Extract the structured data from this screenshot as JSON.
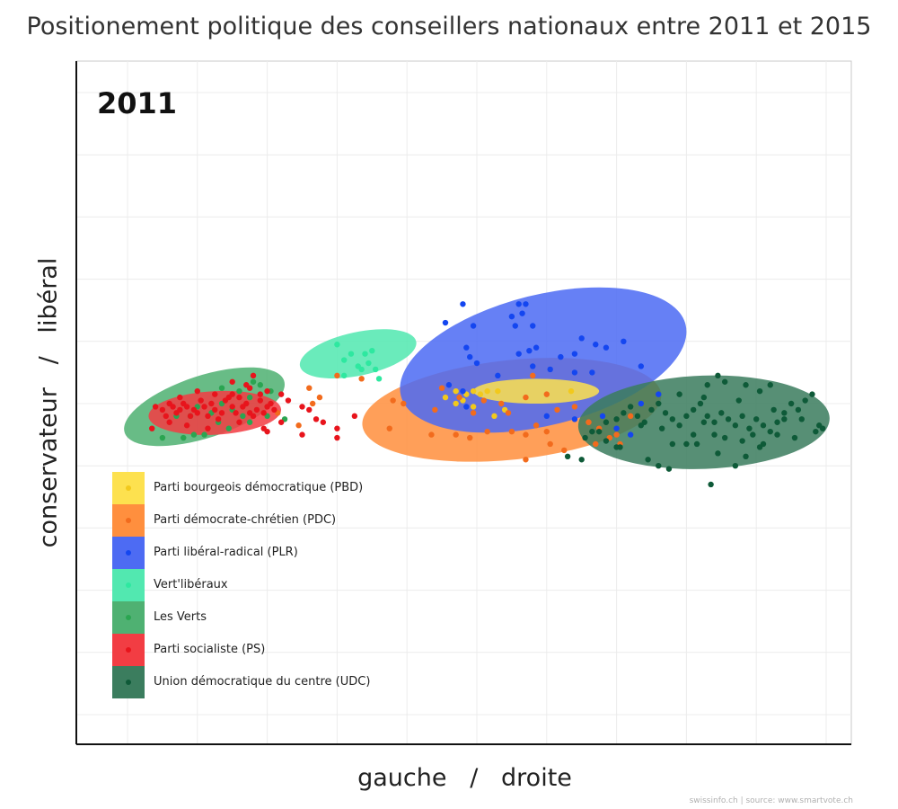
{
  "chart_data": {
    "type": "scatter",
    "title": "Positionement politique des conseillers nationaux entre 2011 et 2015",
    "panel_label": "2011",
    "xlabel": "gauche   /   droite",
    "ylabel": "conservateur   /   libéral",
    "source": "swissinfo.ch | source: www.smartvote.ch",
    "xlim": [
      -100,
      100
    ],
    "ylim": [
      -100,
      100
    ],
    "grid": true,
    "legend_position": "bottom-left",
    "series": [
      {
        "name": "Parti bourgeois démocratique (PBD)",
        "color": "#f2c91c",
        "fill": "#fde14f",
        "ellipse": {
          "cx": 17,
          "cy": 4,
          "rx": 18,
          "ry": 4,
          "angle": 0
        },
        "points": [
          [
            -9,
            2
          ],
          [
            -6,
            4
          ],
          [
            -4,
            1
          ],
          [
            -3,
            3
          ],
          [
            -1,
            4
          ],
          [
            1,
            3
          ],
          [
            3,
            4
          ],
          [
            6,
            4
          ],
          [
            -6,
            0
          ],
          [
            -1,
            -1
          ],
          [
            8,
            -2
          ],
          [
            5,
            -4
          ],
          [
            27,
            4
          ]
        ]
      },
      {
        "name": "Parti démocrate-chrétien (PDC)",
        "color": "#f26b1d",
        "fill": "#ff8f3e",
        "ellipse": {
          "cx": 10,
          "cy": -2,
          "rx": 43,
          "ry": 16,
          "angle": -6
        },
        "points": [
          [
            -48,
            5
          ],
          [
            -57,
            -3
          ],
          [
            -40,
            9
          ],
          [
            -33,
            8
          ],
          [
            -24,
            1
          ],
          [
            -21,
            0
          ],
          [
            -12,
            -2
          ],
          [
            -10,
            5
          ],
          [
            -5,
            2
          ],
          [
            -1,
            -3
          ],
          [
            2,
            1
          ],
          [
            7,
            0
          ],
          [
            9,
            -3
          ],
          [
            14,
            2
          ],
          [
            16,
            9
          ],
          [
            20,
            3
          ],
          [
            23,
            -2
          ],
          [
            28,
            -1
          ],
          [
            32,
            -6
          ],
          [
            35,
            -8
          ],
          [
            38,
            -11
          ],
          [
            40,
            -10
          ],
          [
            44,
            -4
          ],
          [
            -13,
            -10
          ],
          [
            -6,
            -10
          ],
          [
            3,
            -9
          ],
          [
            10,
            -9
          ],
          [
            14,
            -10
          ],
          [
            34,
            -13
          ],
          [
            21,
            -13
          ],
          [
            25,
            -15
          ],
          [
            20,
            -9
          ],
          [
            17,
            -7
          ],
          [
            -2,
            -11
          ],
          [
            14,
            -18
          ],
          [
            -25,
            -8
          ],
          [
            32,
            -6
          ],
          [
            41,
            -13
          ],
          [
            -45,
            2
          ],
          [
            -51,
            -7
          ],
          [
            -47,
            0
          ]
        ]
      },
      {
        "name": "Parti libéral-radical (PLR)",
        "color": "#1446f0",
        "fill": "#4d6bf3",
        "ellipse": {
          "cx": 19,
          "cy": 14,
          "rx": 42,
          "ry": 21,
          "angle": -14
        },
        "points": [
          [
            -4,
            32
          ],
          [
            -9,
            26
          ],
          [
            12,
            32
          ],
          [
            14,
            32
          ],
          [
            13,
            29
          ],
          [
            16,
            25
          ],
          [
            10,
            28
          ],
          [
            11,
            25
          ],
          [
            -1,
            25
          ],
          [
            -3,
            18
          ],
          [
            -2,
            15
          ],
          [
            0,
            13
          ],
          [
            16,
            12
          ],
          [
            15,
            17
          ],
          [
            17,
            18
          ],
          [
            24,
            15
          ],
          [
            28,
            16
          ],
          [
            33,
            10
          ],
          [
            28,
            10
          ],
          [
            21,
            11
          ],
          [
            30,
            21
          ],
          [
            37,
            18
          ],
          [
            34,
            19
          ],
          [
            42,
            20
          ],
          [
            47,
            12
          ],
          [
            -3,
            -1
          ],
          [
            20,
            -4
          ],
          [
            28,
            -5
          ],
          [
            40,
            -8
          ],
          [
            44,
            -10
          ],
          [
            47,
            0
          ],
          [
            52,
            3
          ],
          [
            36,
            -4
          ],
          [
            -4,
            4
          ],
          [
            -8,
            6
          ],
          [
            6,
            9
          ],
          [
            12,
            16
          ]
        ]
      },
      {
        "name": "Vert'libéraux",
        "color": "#2ee8a0",
        "fill": "#52e8b0",
        "ellipse": {
          "cx": -34,
          "cy": 16,
          "rx": 17,
          "ry": 7,
          "angle": -12
        },
        "points": [
          [
            -40,
            19
          ],
          [
            -38,
            14
          ],
          [
            -36,
            16
          ],
          [
            -34,
            12
          ],
          [
            -32,
            16
          ],
          [
            -31,
            13
          ],
          [
            -29,
            11
          ],
          [
            -30,
            17
          ],
          [
            -38,
            9
          ],
          [
            -28,
            8
          ],
          [
            -33,
            11
          ]
        ]
      },
      {
        "name": "Les Verts",
        "color": "#2aa551",
        "fill": "#4fb172",
        "ellipse": {
          "cx": -78,
          "cy": -1,
          "rx": 24,
          "ry": 10,
          "angle": -18
        },
        "points": [
          [
            -90,
            -11
          ],
          [
            -84,
            -11
          ],
          [
            -81,
            -10
          ],
          [
            -78,
            -10
          ],
          [
            -82,
            -4
          ],
          [
            -86,
            -4
          ],
          [
            -80,
            -1
          ],
          [
            -76,
            -3
          ],
          [
            -73,
            0
          ],
          [
            -70,
            -2
          ],
          [
            -67,
            -4
          ],
          [
            -71,
            -8
          ],
          [
            -74,
            -6
          ],
          [
            -65,
            2
          ],
          [
            -62,
            6
          ],
          [
            -59,
            4
          ],
          [
            -65,
            -6
          ],
          [
            -60,
            -4
          ],
          [
            -55,
            -5
          ],
          [
            -64,
            7
          ],
          [
            -68,
            4
          ],
          [
            -73,
            5
          ]
        ]
      },
      {
        "name": "Parti socialiste (PS)",
        "color": "#e8141c",
        "fill": "#f23d43",
        "ellipse": {
          "cx": -75,
          "cy": -3,
          "rx": 19,
          "ry": 7,
          "angle": -3
        },
        "points": [
          [
            -92,
            -1
          ],
          [
            -90,
            -2
          ],
          [
            -89,
            -4
          ],
          [
            -88,
            0
          ],
          [
            -87,
            -1
          ],
          [
            -86,
            -3
          ],
          [
            -85,
            -2
          ],
          [
            -84,
            0
          ],
          [
            -83,
            -1
          ],
          [
            -82,
            -4
          ],
          [
            -81,
            -2
          ],
          [
            -80,
            -3
          ],
          [
            -79,
            1
          ],
          [
            -78,
            -1
          ],
          [
            -77,
            -4
          ],
          [
            -76,
            0
          ],
          [
            -75,
            -2
          ],
          [
            -74,
            -5
          ],
          [
            -73,
            -3
          ],
          [
            -72,
            1
          ],
          [
            -71,
            2
          ],
          [
            -70,
            -1
          ],
          [
            -69,
            -3
          ],
          [
            -68,
            2
          ],
          [
            -67,
            -1
          ],
          [
            -66,
            0
          ],
          [
            -65,
            -3
          ],
          [
            -64,
            -4
          ],
          [
            -63,
            -2
          ],
          [
            -62,
            1
          ],
          [
            -61,
            -3
          ],
          [
            -60,
            -1
          ],
          [
            -59,
            0
          ],
          [
            -58,
            -2
          ],
          [
            -60,
            4
          ],
          [
            -62,
            3
          ],
          [
            -65,
            5
          ],
          [
            -70,
            3
          ],
          [
            -56,
            3
          ],
          [
            -54,
            1
          ],
          [
            -50,
            -1
          ],
          [
            -48,
            -2
          ],
          [
            -46,
            -5
          ],
          [
            -44,
            -6
          ],
          [
            -40,
            -8
          ],
          [
            -35,
            -4
          ],
          [
            -61,
            -8
          ],
          [
            -68,
            -6
          ],
          [
            -77,
            -8
          ],
          [
            -83,
            -7
          ],
          [
            -88,
            -6
          ],
          [
            -93,
            -8
          ],
          [
            -85,
            2
          ],
          [
            -80,
            4
          ],
          [
            -75,
            3
          ],
          [
            -70,
            7
          ],
          [
            -66,
            6
          ],
          [
            -64,
            9
          ],
          [
            -60,
            -9
          ],
          [
            -56,
            -6
          ],
          [
            -50,
            -10
          ],
          [
            -40,
            -11
          ]
        ]
      },
      {
        "name": "Union démocratique du centre (UDC)",
        "color": "#0e5a38",
        "fill": "#3b7d5e",
        "ellipse": {
          "cx": 65,
          "cy": -6,
          "rx": 36,
          "ry": 15,
          "angle": -2
        },
        "points": [
          [
            31,
            -11
          ],
          [
            35,
            -9
          ],
          [
            37,
            -6
          ],
          [
            40,
            -5
          ],
          [
            42,
            -3
          ],
          [
            44,
            -1
          ],
          [
            46,
            -4
          ],
          [
            48,
            -6
          ],
          [
            50,
            -2
          ],
          [
            52,
            0
          ],
          [
            54,
            -3
          ],
          [
            56,
            -5
          ],
          [
            58,
            -7
          ],
          [
            60,
            -4
          ],
          [
            62,
            -2
          ],
          [
            64,
            0
          ],
          [
            66,
            -4
          ],
          [
            68,
            -6
          ],
          [
            70,
            -3
          ],
          [
            72,
            -5
          ],
          [
            74,
            -7
          ],
          [
            76,
            -4
          ],
          [
            78,
            -8
          ],
          [
            80,
            -5
          ],
          [
            82,
            -7
          ],
          [
            84,
            -9
          ],
          [
            86,
            -6
          ],
          [
            88,
            -3
          ],
          [
            90,
            0
          ],
          [
            92,
            -2
          ],
          [
            94,
            1
          ],
          [
            96,
            3
          ],
          [
            98,
            -7
          ],
          [
            97,
            -9
          ],
          [
            91,
            -11
          ],
          [
            86,
            -10
          ],
          [
            81,
            -14
          ],
          [
            77,
            -17
          ],
          [
            74,
            -20
          ],
          [
            69,
            -16
          ],
          [
            63,
            -13
          ],
          [
            56,
            -13
          ],
          [
            49,
            -18
          ],
          [
            41,
            -14
          ],
          [
            37,
            -12
          ],
          [
            33,
            -9
          ],
          [
            30,
            -18
          ],
          [
            26,
            -17
          ],
          [
            47,
            -7
          ],
          [
            53,
            -8
          ],
          [
            62,
            -10
          ],
          [
            65,
            -6
          ],
          [
            71,
            -11
          ],
          [
            76,
            -12
          ],
          [
            82,
            -13
          ],
          [
            79,
            -10
          ],
          [
            85,
            -2
          ],
          [
            58,
            3
          ],
          [
            66,
            6
          ],
          [
            69,
            9
          ],
          [
            71,
            7
          ],
          [
            77,
            6
          ],
          [
            81,
            4
          ],
          [
            84,
            6
          ],
          [
            65,
            2
          ],
          [
            75,
            1
          ],
          [
            40,
            -14
          ],
          [
            52,
            -20
          ],
          [
            60,
            -13
          ],
          [
            68,
            -10
          ],
          [
            88,
            -5
          ],
          [
            93,
            -5
          ],
          [
            99,
            -8
          ],
          [
            67,
            -26
          ],
          [
            55,
            -21
          ]
        ]
      }
    ]
  }
}
